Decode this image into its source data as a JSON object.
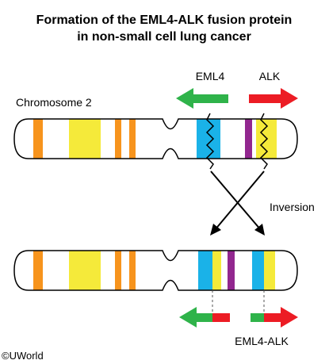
{
  "title": {
    "line1": "Formation of the EML4-ALK fusion protein",
    "line2": "in non-small cell lung cancer"
  },
  "labels": {
    "eml4": "EML4",
    "alk": "ALK",
    "chromosome": "Chromosome 2",
    "inversion": "Inversion",
    "fusion": "EML4-ALK",
    "copyright": "©UWorld"
  },
  "colors": {
    "eml4_green": "#2fb34a",
    "alk_red": "#ec1c24",
    "orange_band": "#f7941d",
    "yellow_band": "#f5ea3a",
    "blue_band": "#1ab2e8",
    "purple_band": "#92278f",
    "outline": "#000000"
  }
}
